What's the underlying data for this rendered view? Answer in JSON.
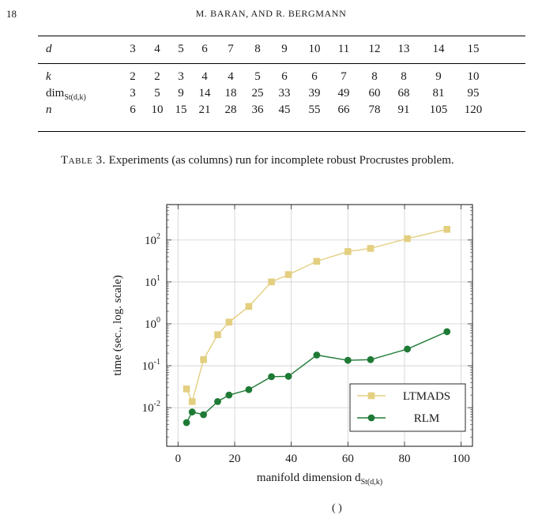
{
  "header": {
    "page_number": "18",
    "running_head": "M. BARAN, AND R. BERGMANN"
  },
  "table": {
    "rows": [
      {
        "label": "d",
        "values": [
          "3",
          "4",
          "5",
          "6",
          "7",
          "8",
          "9",
          "10",
          "11",
          "12",
          "13",
          "14",
          "15"
        ]
      },
      {
        "label": "k",
        "values": [
          "2",
          "2",
          "3",
          "4",
          "4",
          "5",
          "6",
          "6",
          "7",
          "8",
          "8",
          "9",
          "10"
        ]
      },
      {
        "label": "dim",
        "label_subscript": "St(d,k)",
        "values": [
          "3",
          "5",
          "9",
          "14",
          "18",
          "25",
          "33",
          "39",
          "49",
          "60",
          "68",
          "81",
          "95"
        ]
      },
      {
        "label": "n",
        "values": [
          "6",
          "10",
          "15",
          "21",
          "28",
          "36",
          "45",
          "55",
          "66",
          "78",
          "91",
          "105",
          "120"
        ]
      }
    ],
    "caption_label": "Table 3.",
    "caption_text": "Experiments (as columns) run for incomplete robust Procrustes problem."
  },
  "chart_data": {
    "type": "line",
    "xlabel": "manifold dimension d",
    "xlabel_subscript": "St(d,k)",
    "ylabel": "time (sec., log. scale)",
    "xlim": [
      -4,
      104
    ],
    "ylim": [
      0.0012,
      700
    ],
    "yscale": "log",
    "xticks": [
      "0",
      "20",
      "40",
      "60",
      "80",
      "100"
    ],
    "xtick_values": [
      0,
      20,
      40,
      60,
      80,
      100
    ],
    "yticks": [
      "10",
      "10",
      "10",
      "10",
      "10"
    ],
    "ytick_exponents": [
      "-2",
      "-1",
      "0",
      "1",
      "2"
    ],
    "ytick_values": [
      0.01,
      0.1,
      1,
      10,
      100
    ],
    "grid": true,
    "legend_position": "bottom-right",
    "series": [
      {
        "name": "LTMADS",
        "color": "#e3cf80",
        "marker": "square",
        "x": [
          3,
          5,
          9,
          14,
          18,
          25,
          33,
          39,
          49,
          60,
          68,
          81,
          95
        ],
        "y": [
          0.028,
          0.014,
          0.14,
          0.55,
          1.1,
          2.6,
          10,
          15,
          31,
          53,
          63,
          108,
          180
        ]
      },
      {
        "name": "RLM",
        "color": "#1e7a35",
        "marker": "circle",
        "x": [
          3,
          5,
          9,
          14,
          18,
          25,
          33,
          39,
          49,
          60,
          68,
          81,
          95
        ],
        "y": [
          0.0044,
          0.0079,
          0.0068,
          0.014,
          0.02,
          0.027,
          0.055,
          0.056,
          0.18,
          0.135,
          0.14,
          0.25,
          0.65
        ]
      }
    ]
  },
  "footer": {
    "partial_text": "(          )"
  }
}
